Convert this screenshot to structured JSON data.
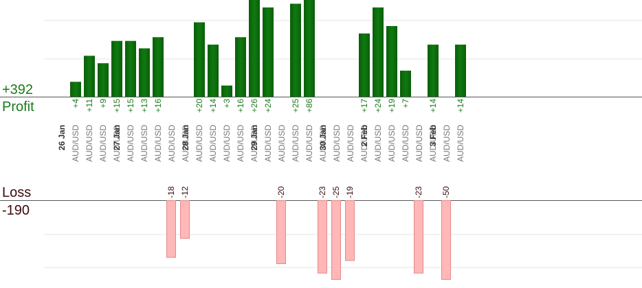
{
  "colors": {
    "profit_bar": "#0b6b0b",
    "profit_bar_light": "#1f8a1f",
    "profit_label": "#1a7a1a",
    "loss_bar_fill": "#ffb7b7",
    "loss_bar_stroke": "#e08a8a",
    "loss_label": "#3a0a0a",
    "axis_line": "#555555",
    "grid_line": "#e6e6e6",
    "tick_text": "#777777",
    "date_text": "#333333"
  },
  "summary": {
    "profit_total": "+392",
    "profit_label": "Profit",
    "loss_label": "Loss",
    "loss_total": "-190"
  },
  "chart_data": {
    "type": "bar",
    "profit_ylim": [
      0,
      26
    ],
    "loss_ylim": [
      0,
      25
    ],
    "grid": true,
    "categories": [
      {
        "date": "26 Jan",
        "pair": "AUD/USD",
        "value": 4,
        "label": "+4"
      },
      {
        "pair": "AUD/USD",
        "value": 11,
        "label": "+11"
      },
      {
        "pair": "AUD/USD",
        "value": 9,
        "label": "+9"
      },
      {
        "pair": "AUD/USD",
        "value": 15,
        "label": "+15"
      },
      {
        "date": "27 Jan",
        "pair": "AUD/USD",
        "value": 15,
        "label": "+15"
      },
      {
        "pair": "AUD/USD",
        "value": 13,
        "label": "+13"
      },
      {
        "pair": "AUD/USD",
        "value": 16,
        "label": "+16"
      },
      {
        "pair": "AUD/USD",
        "value": -18,
        "label": "-18"
      },
      {
        "pair": "AUD/USD",
        "value": -12,
        "label": "-12"
      },
      {
        "date": "28 Jan",
        "pair": "AUD/USD",
        "value": 20,
        "label": "+20"
      },
      {
        "pair": "AUD/USD",
        "value": 14,
        "label": "+14"
      },
      {
        "pair": "AUD/USD",
        "value": 3,
        "label": "+3"
      },
      {
        "pair": "AUD/USD",
        "value": 16,
        "label": "+16"
      },
      {
        "pair": "AUD/USD",
        "value": 26,
        "label": "+26"
      },
      {
        "date": "29 Jan",
        "pair": "AUD/USD",
        "value": 24,
        "label": "+24"
      },
      {
        "pair": "AUD/USD",
        "value": -20,
        "label": "-20"
      },
      {
        "pair": "AUD/USD",
        "value": 25,
        "label": "+25"
      },
      {
        "pair": "AUD/USD",
        "value": 86,
        "label": "+86"
      },
      {
        "pair": "AUD/USD",
        "value": -23,
        "label": "-23"
      },
      {
        "date": "30 Jan",
        "pair": "AUD/USD",
        "value": -25,
        "label": "-25"
      },
      {
        "pair": "AUD/USD",
        "value": -19,
        "label": "-19"
      },
      {
        "pair": "AUD/USD",
        "value": 17,
        "label": "+17"
      },
      {
        "date": "2 Feb",
        "pair": "AUD/USD",
        "value": 24,
        "label": "+24"
      },
      {
        "pair": "AUD/USD",
        "value": 19,
        "label": "+19"
      },
      {
        "pair": "AUD/USD",
        "value": 7,
        "label": "+7"
      },
      {
        "pair": "AUD/USD",
        "value": -23,
        "label": "-23"
      },
      {
        "pair": "AUD/USD",
        "value": 14,
        "label": "+14"
      },
      {
        "date": "3 Feb",
        "pair": "AUD/USD",
        "value": -50,
        "label": "-50"
      },
      {
        "pair": "AUD/USD",
        "value": 14,
        "label": "+14"
      }
    ]
  }
}
